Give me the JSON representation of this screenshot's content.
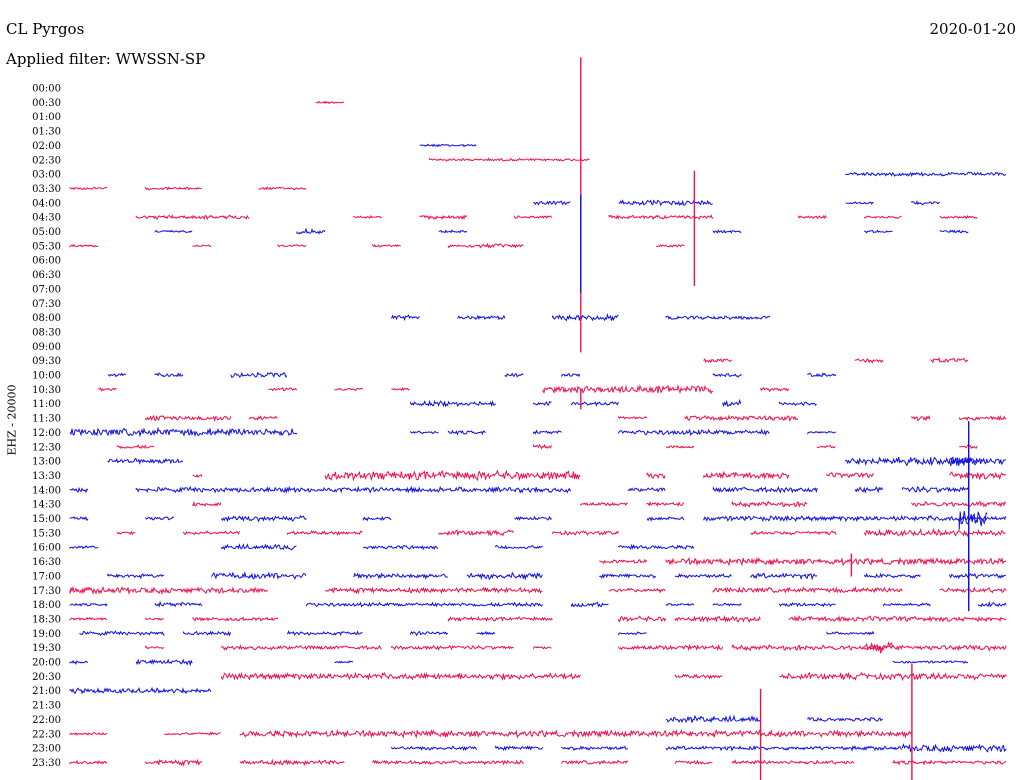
{
  "header": {
    "station": "CL Pyrgos",
    "filter": "Applied filter: WWSSN-SP",
    "date": "2020-01-20",
    "channel": "EHZ - 20000"
  },
  "chart_data": {
    "type": "helicorder",
    "row_labels": [
      "00:00",
      "00:30",
      "01:00",
      "01:30",
      "02:00",
      "02:30",
      "03:00",
      "03:30",
      "04:00",
      "04:30",
      "05:00",
      "05:30",
      "06:00",
      "06:30",
      "07:00",
      "07:30",
      "08:00",
      "08:30",
      "09:00",
      "09:30",
      "10:00",
      "10:30",
      "11:00",
      "11:30",
      "12:00",
      "12:30",
      "13:00",
      "13:30",
      "14:00",
      "14:30",
      "15:00",
      "15:30",
      "16:00",
      "16:30",
      "17:00",
      "17:30",
      "18:00",
      "18:30",
      "19:00",
      "19:30",
      "20:00",
      "20:30",
      "21:00",
      "21:30",
      "22:00",
      "22:30",
      "23:00",
      "23:30"
    ],
    "colors": {
      "even": "#1010e0",
      "odd": "#f0104a"
    },
    "minutes_per_line": 30,
    "traces": [
      [],
      [
        [
          26,
          29,
          2
        ]
      ],
      [],
      [],
      [
        [
          37,
          43,
          2
        ]
      ],
      [
        [
          38,
          55,
          2
        ]
      ],
      [
        [
          82,
          99,
          3
        ]
      ],
      [
        [
          0,
          4,
          2
        ],
        [
          8,
          14,
          2
        ],
        [
          20,
          25,
          2
        ]
      ],
      [
        [
          49,
          53,
          3
        ],
        [
          58,
          68,
          4
        ],
        [
          82,
          85,
          2
        ],
        [
          89,
          92,
          3
        ]
      ],
      [
        [
          7,
          19,
          3
        ],
        [
          30,
          33,
          2
        ],
        [
          37,
          42,
          3
        ],
        [
          47,
          51,
          2
        ],
        [
          57,
          68,
          3
        ],
        [
          77,
          80,
          2
        ],
        [
          84,
          88,
          2
        ],
        [
          92,
          96,
          2
        ]
      ],
      [
        [
          9,
          13,
          2
        ],
        [
          24,
          27,
          4
        ],
        [
          39,
          42,
          2
        ],
        [
          68,
          71,
          2
        ],
        [
          84,
          87,
          2
        ],
        [
          92,
          95,
          2
        ]
      ],
      [
        [
          0,
          3,
          2
        ],
        [
          13,
          15,
          2
        ],
        [
          22,
          25,
          2
        ],
        [
          32,
          35,
          2
        ],
        [
          40,
          48,
          3
        ],
        [
          62,
          65,
          2
        ]
      ],
      [],
      [],
      [],
      [],
      [
        [
          34,
          37,
          4
        ],
        [
          41,
          46,
          3
        ],
        [
          51,
          58,
          5
        ],
        [
          63,
          74,
          3
        ]
      ],
      [],
      [],
      [
        [
          67,
          70,
          3
        ],
        [
          83,
          86,
          3
        ],
        [
          91,
          95,
          4
        ]
      ],
      [
        [
          4,
          6,
          3
        ],
        [
          9,
          12,
          3
        ],
        [
          17,
          23,
          4
        ],
        [
          46,
          48,
          3
        ],
        [
          52,
          54,
          3
        ],
        [
          68,
          71,
          3
        ],
        [
          78,
          81,
          3
        ]
      ],
      [
        [
          3,
          5,
          2
        ],
        [
          21,
          24,
          3
        ],
        [
          28,
          31,
          2
        ],
        [
          34,
          36,
          2
        ],
        [
          50,
          68,
          6
        ],
        [
          73,
          76,
          3
        ]
      ],
      [
        [
          36,
          45,
          4
        ],
        [
          49,
          51,
          3
        ],
        [
          53,
          58,
          3
        ],
        [
          69,
          71,
          5
        ],
        [
          75,
          79,
          3
        ]
      ],
      [
        [
          8,
          17,
          4
        ],
        [
          19,
          22,
          3
        ],
        [
          58,
          61,
          2
        ],
        [
          65,
          77,
          4
        ],
        [
          89,
          91,
          4
        ],
        [
          94,
          99,
          3
        ]
      ],
      [
        [
          0,
          24,
          6
        ],
        [
          36,
          39,
          2
        ],
        [
          40,
          44,
          3
        ],
        [
          49,
          52,
          3
        ],
        [
          58,
          74,
          4
        ],
        [
          78,
          81,
          2
        ]
      ],
      [
        [
          5,
          9,
          3
        ],
        [
          49,
          51,
          3
        ],
        [
          63,
          66,
          2
        ],
        [
          79,
          81,
          2
        ],
        [
          94,
          96,
          3
        ]
      ],
      [
        [
          4,
          12,
          4
        ],
        [
          82,
          99,
          6
        ],
        [
          93,
          96,
          9
        ]
      ],
      [
        [
          13,
          14,
          3
        ],
        [
          27,
          54,
          7
        ],
        [
          61,
          63,
          4
        ],
        [
          67,
          76,
          5
        ],
        [
          80,
          85,
          4
        ],
        [
          93,
          99,
          6
        ]
      ],
      [
        [
          0,
          2,
          4
        ],
        [
          7,
          53,
          4
        ],
        [
          59,
          63,
          3
        ],
        [
          68,
          79,
          4
        ],
        [
          83,
          86,
          4
        ],
        [
          88,
          95,
          5
        ]
      ],
      [
        [
          13,
          16,
          4
        ],
        [
          54,
          59,
          3
        ],
        [
          61,
          65,
          3
        ],
        [
          70,
          78,
          4
        ],
        [
          89,
          99,
          4
        ]
      ],
      [
        [
          0,
          2,
          4
        ],
        [
          8,
          11,
          3
        ],
        [
          16,
          25,
          4
        ],
        [
          31,
          34,
          3
        ],
        [
          47,
          51,
          3
        ],
        [
          61,
          65,
          3
        ],
        [
          67,
          99,
          4
        ],
        [
          94,
          97,
          20
        ]
      ],
      [
        [
          5,
          7,
          2
        ],
        [
          12,
          18,
          3
        ],
        [
          23,
          31,
          3
        ],
        [
          39,
          47,
          4
        ],
        [
          51,
          58,
          3
        ],
        [
          72,
          81,
          3
        ],
        [
          84,
          99,
          5
        ]
      ],
      [
        [
          0,
          3,
          2
        ],
        [
          16,
          24,
          4
        ],
        [
          31,
          39,
          3
        ],
        [
          45,
          50,
          3
        ],
        [
          58,
          66,
          3
        ]
      ],
      [
        [
          56,
          61,
          3
        ],
        [
          63,
          99,
          5
        ]
      ],
      [
        [
          4,
          10,
          3
        ],
        [
          15,
          25,
          5
        ],
        [
          30,
          40,
          4
        ],
        [
          42,
          50,
          5
        ],
        [
          56,
          62,
          3
        ],
        [
          64,
          70,
          3
        ],
        [
          72,
          79,
          4
        ],
        [
          84,
          90,
          3
        ],
        [
          93,
          99,
          4
        ]
      ],
      [
        [
          0,
          21,
          5
        ],
        [
          27,
          50,
          4
        ],
        [
          57,
          63,
          3
        ],
        [
          68,
          88,
          4
        ],
        [
          92,
          99,
          4
        ]
      ],
      [
        [
          0,
          4,
          2
        ],
        [
          9,
          14,
          4
        ],
        [
          25,
          50,
          3
        ],
        [
          53,
          57,
          4
        ],
        [
          63,
          66,
          2
        ],
        [
          68,
          71,
          2
        ],
        [
          75,
          81,
          3
        ],
        [
          86,
          91,
          2
        ],
        [
          96,
          99,
          3
        ]
      ],
      [
        [
          0,
          4,
          2
        ],
        [
          8,
          10,
          2
        ],
        [
          13,
          22,
          3
        ],
        [
          40,
          51,
          3
        ],
        [
          58,
          63,
          4
        ],
        [
          64,
          73,
          4
        ],
        [
          76,
          99,
          4
        ]
      ],
      [
        [
          1,
          10,
          3
        ],
        [
          12,
          17,
          3
        ],
        [
          23,
          31,
          3
        ],
        [
          36,
          40,
          3
        ],
        [
          43,
          45,
          2
        ],
        [
          58,
          61,
          2
        ],
        [
          80,
          85,
          2
        ]
      ],
      [
        [
          8,
          10,
          2
        ],
        [
          16,
          33,
          3
        ],
        [
          34,
          47,
          3
        ],
        [
          49,
          51,
          2
        ],
        [
          58,
          69,
          4
        ],
        [
          70,
          99,
          4
        ],
        [
          84,
          87,
          8
        ]
      ],
      [
        [
          0,
          2,
          3
        ],
        [
          7,
          13,
          4
        ],
        [
          28,
          30,
          2
        ],
        [
          87,
          95,
          2
        ]
      ],
      [
        [
          16,
          54,
          5
        ],
        [
          64,
          69,
          3
        ],
        [
          75,
          99,
          5
        ]
      ],
      [
        [
          0,
          15,
          4
        ]
      ],
      [],
      [
        [
          63,
          73,
          5
        ],
        [
          78,
          86,
          3
        ]
      ],
      [
        [
          0,
          4,
          2
        ],
        [
          10,
          16,
          2
        ],
        [
          18,
          89,
          5
        ]
      ],
      [
        [
          34,
          43,
          3
        ],
        [
          45,
          50,
          3
        ],
        [
          52,
          59,
          3
        ],
        [
          63,
          88,
          3
        ],
        [
          88,
          99,
          6
        ]
      ],
      [
        [
          0,
          4,
          3
        ],
        [
          8,
          14,
          4
        ],
        [
          18,
          29,
          4
        ],
        [
          32,
          48,
          3
        ],
        [
          52,
          59,
          3
        ],
        [
          64,
          68,
          3
        ],
        [
          70,
          83,
          3
        ],
        [
          87,
          99,
          3
        ]
      ]
    ],
    "spikes": [
      [
        1,
        54.0,
        45,
        250
      ],
      [
        8,
        54.0,
        8,
        90
      ],
      [
        11,
        66.0,
        75,
        40
      ],
      [
        21,
        54.0,
        0,
        20
      ],
      [
        26,
        95.0,
        40,
        150
      ],
      [
        30,
        95.0,
        60,
        80
      ],
      [
        33,
        82.6,
        8,
        15
      ],
      [
        45,
        73.0,
        45,
        50
      ],
      [
        45,
        89.0,
        70,
        50
      ]
    ]
  }
}
